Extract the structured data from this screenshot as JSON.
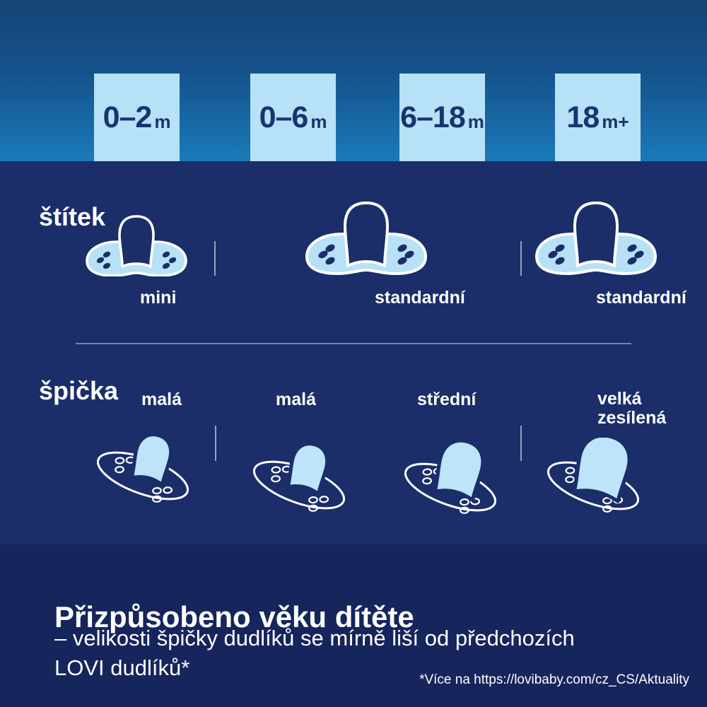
{
  "colors": {
    "gradient_top": "#154477",
    "gradient_bottom": "#1a7ab8",
    "panel_navy": "#1b2e6a",
    "footer_navy": "#16255c",
    "light_blue": "#b7e1f6",
    "tip_blue": "#bde4f8",
    "badge_text_navy": "#18356f",
    "white": "#ffffff"
  },
  "ages": [
    {
      "range": "0–2",
      "unit": "m"
    },
    {
      "range": "0–6",
      "unit": "m"
    },
    {
      "range": "6–18",
      "unit": "m"
    },
    {
      "range": "18",
      "unit": "m+"
    }
  ],
  "shield_section": {
    "title": "štítek",
    "items": [
      {
        "label": "mini",
        "size": "mini"
      },
      {
        "label": "standardní",
        "size": "standard"
      },
      {
        "label": "standardní",
        "size": "standard"
      }
    ]
  },
  "tip_section": {
    "title": "špička",
    "items": [
      {
        "label": "malá",
        "size": "small"
      },
      {
        "label": "malá",
        "size": "small"
      },
      {
        "label": "střední",
        "size": "medium"
      },
      {
        "label": "velká zesílená",
        "size": "large"
      }
    ]
  },
  "footer": {
    "heading": "Přizpůsobeno věku dítěte",
    "line1": "– velikosti špičky dudlíků se mírně liší od předchozích",
    "line2": "LOVI dudlíků*",
    "footnote": "*Více na https://lovibaby.com/cz_CS/Aktuality"
  }
}
